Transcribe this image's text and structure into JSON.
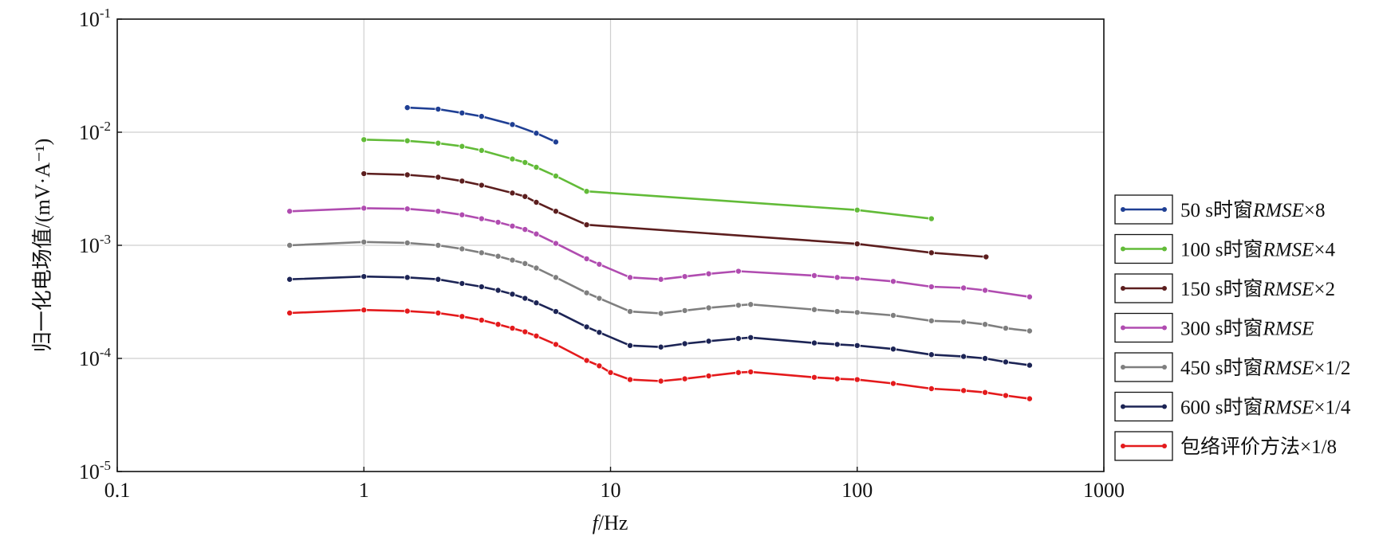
{
  "chart_data": {
    "type": "line",
    "xscale": "log",
    "yscale": "log",
    "xlim": [
      0.1,
      1000
    ],
    "ylim": [
      1e-05,
      0.1
    ],
    "xlabel": {
      "italic": "f",
      "rest": "/Hz"
    },
    "ylabel": "归一化电场值/(mV·A⁻¹)",
    "grid": true,
    "legend_position": "right",
    "x_ticks": [
      {
        "value": 0.1,
        "label": "0.1"
      },
      {
        "value": 1,
        "label": "1"
      },
      {
        "value": 10,
        "label": "10"
      },
      {
        "value": 100,
        "label": "100"
      },
      {
        "value": 1000,
        "label": "1000"
      }
    ],
    "y_ticks": [
      {
        "value": 1e-05,
        "base": "10",
        "exp": "-5"
      },
      {
        "value": 0.0001,
        "base": "10",
        "exp": "-4"
      },
      {
        "value": 0.001,
        "base": "10",
        "exp": "-3"
      },
      {
        "value": 0.01,
        "base": "10",
        "exp": "-2"
      },
      {
        "value": 0.1,
        "base": "10",
        "exp": "-1"
      }
    ],
    "series": [
      {
        "name": "50 s时窗RMSE×8",
        "legend": {
          "pre": "50 s时窗",
          "it": "RMSE",
          "post": "×8"
        },
        "color": "#1f3f94",
        "x": [
          1.5,
          2,
          2.5,
          3,
          4,
          5,
          6
        ],
        "y": [
          0.0165,
          0.016,
          0.0148,
          0.0138,
          0.0117,
          0.0098,
          0.0082
        ]
      },
      {
        "name": "100 s时窗RMSE×4",
        "legend": {
          "pre": "100 s时窗",
          "it": "RMSE",
          "post": "×4"
        },
        "color": "#62bb38",
        "x": [
          1,
          1.5,
          2,
          2.5,
          3,
          4,
          4.5,
          5,
          6,
          8,
          100,
          200
        ],
        "y": [
          0.0086,
          0.0084,
          0.008,
          0.0075,
          0.0069,
          0.0058,
          0.0054,
          0.0049,
          0.0041,
          0.003,
          0.00205,
          0.00172
        ]
      },
      {
        "name": "150 s时窗RMSE×2",
        "legend": {
          "pre": "150 s时窗",
          "it": "RMSE",
          "post": "×2"
        },
        "color": "#5c1e1e",
        "x": [
          1,
          1.5,
          2,
          2.5,
          3,
          4,
          4.5,
          5,
          6,
          8,
          100,
          200,
          333
        ],
        "y": [
          0.0043,
          0.0042,
          0.004,
          0.0037,
          0.0034,
          0.0029,
          0.0027,
          0.0024,
          0.002,
          0.00152,
          0.00103,
          0.00086,
          0.00079
        ]
      },
      {
        "name": "300 s时窗RMSE",
        "legend": {
          "pre": "300 s时窗",
          "it": "RMSE",
          "post": ""
        },
        "color": "#b04cb0",
        "x": [
          0.5,
          1,
          1.5,
          2,
          2.5,
          3,
          3.5,
          4,
          4.5,
          5,
          6,
          8,
          9,
          12,
          16,
          20,
          25,
          33,
          67,
          83,
          100,
          140,
          200,
          270,
          330,
          500
        ],
        "y": [
          0.002,
          0.00213,
          0.0021,
          0.002,
          0.00186,
          0.00172,
          0.0016,
          0.00148,
          0.00138,
          0.00126,
          0.00104,
          0.00076,
          0.00068,
          0.00052,
          0.0005,
          0.00053,
          0.00056,
          0.00059,
          0.00054,
          0.00052,
          0.00051,
          0.00048,
          0.00043,
          0.00042,
          0.0004,
          0.00035
        ]
      },
      {
        "name": "450 s时窗RMSE×1/2",
        "legend": {
          "pre": "450 s时窗",
          "it": "RMSE",
          "post": "×1/2"
        },
        "color": "#7f7f7f",
        "x": [
          0.5,
          1,
          1.5,
          2,
          2.5,
          3,
          3.5,
          4,
          4.5,
          5,
          6,
          8,
          9,
          12,
          16,
          20,
          25,
          33,
          37,
          67,
          83,
          100,
          140,
          200,
          270,
          330,
          400,
          500
        ],
        "y": [
          0.001,
          0.00107,
          0.00105,
          0.001,
          0.00093,
          0.00086,
          0.0008,
          0.00074,
          0.00069,
          0.00063,
          0.00052,
          0.00038,
          0.00034,
          0.00026,
          0.00025,
          0.000265,
          0.00028,
          0.000295,
          0.0003,
          0.00027,
          0.00026,
          0.000255,
          0.00024,
          0.000215,
          0.00021,
          0.0002,
          0.000185,
          0.000175
        ]
      },
      {
        "name": "600 s时窗RMSE×1/4",
        "legend": {
          "pre": "600 s时窗",
          "it": "RMSE",
          "post": "×1/4"
        },
        "color": "#1c2455",
        "x": [
          0.5,
          1,
          1.5,
          2,
          2.5,
          3,
          3.5,
          4,
          4.5,
          5,
          6,
          8,
          9,
          12,
          16,
          20,
          25,
          33,
          37,
          67,
          83,
          100,
          140,
          200,
          270,
          330,
          400,
          500
        ],
        "y": [
          0.0005,
          0.00053,
          0.00052,
          0.0005,
          0.00046,
          0.00043,
          0.0004,
          0.00037,
          0.00034,
          0.00031,
          0.00026,
          0.00019,
          0.00017,
          0.00013,
          0.000126,
          0.000135,
          0.000142,
          0.00015,
          0.000153,
          0.000137,
          0.000133,
          0.00013,
          0.000121,
          0.000108,
          0.000104,
          0.0001,
          9.3e-05,
          8.7e-05
        ]
      },
      {
        "name": "包络评价方法×1/8",
        "legend": {
          "pre": "包络评价方法",
          "it": "",
          "post": "×1/8"
        },
        "color": "#e41a1c",
        "x": [
          0.5,
          1,
          1.5,
          2,
          2.5,
          3,
          3.5,
          4,
          4.5,
          5,
          6,
          8,
          9,
          10,
          12,
          16,
          20,
          25,
          33,
          37,
          67,
          83,
          100,
          140,
          200,
          270,
          330,
          400,
          500
        ],
        "y": [
          0.000252,
          0.000268,
          0.000262,
          0.000252,
          0.000235,
          0.000218,
          0.0002,
          0.000185,
          0.000172,
          0.000158,
          0.000133,
          9.6e-05,
          8.6e-05,
          7.5e-05,
          6.5e-05,
          6.3e-05,
          6.6e-05,
          7e-05,
          7.5e-05,
          7.6e-05,
          6.8e-05,
          6.6e-05,
          6.5e-05,
          6e-05,
          5.4e-05,
          5.2e-05,
          5e-05,
          4.7e-05,
          4.4e-05
        ]
      }
    ]
  }
}
